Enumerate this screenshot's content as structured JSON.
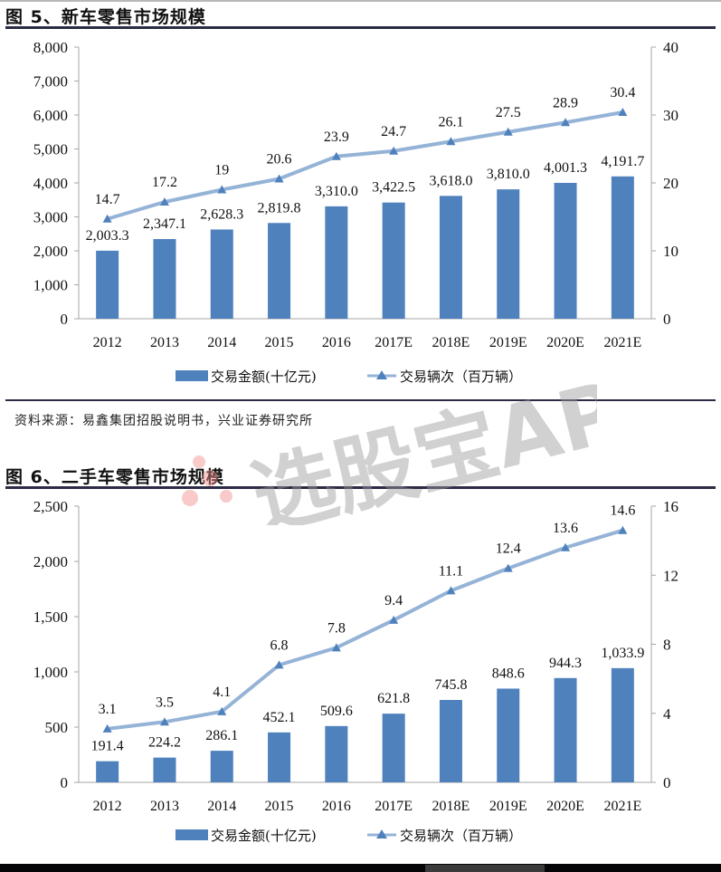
{
  "figures": [
    {
      "title": "图 5、新车零售市场规模",
      "source": "资料来源：易鑫集团招股说明书，兴业证券研究所"
    },
    {
      "title": "图 6、二手车零售市场规模"
    }
  ],
  "watermark": "选股宝APP",
  "colors": {
    "bar": "#4f81bd",
    "line": "#95b3d7",
    "marker": "#4f81bd",
    "rule": "#2b2b45",
    "axis": "#a6a6a6"
  },
  "chart_data": [
    {
      "type": "bar+line",
      "title": "图 5、新车零售市场规模",
      "categories": [
        "2012",
        "2013",
        "2014",
        "2015",
        "2016",
        "2017E",
        "2018E",
        "2019E",
        "2020E",
        "2021E"
      ],
      "series": [
        {
          "name": "交易金额(十亿元)",
          "type": "bar",
          "axis": "left",
          "values": [
            2003.3,
            2347.1,
            2628.3,
            2819.8,
            3310.0,
            3422.5,
            3618.0,
            3810.0,
            4001.3,
            4191.7
          ],
          "labels": [
            "2,003.3",
            "2,347.1",
            "2,628.3",
            "2,819.8",
            "3,310.0",
            "3,422.5",
            "3,618.0",
            "3,810.0",
            "4,001.3",
            "4,191.7"
          ]
        },
        {
          "name": "交易辆次（百万辆）",
          "type": "line",
          "axis": "right",
          "values": [
            14.7,
            17.2,
            19,
            20.6,
            23.9,
            24.7,
            26.1,
            27.5,
            28.9,
            30.4
          ],
          "labels": [
            "14.7",
            "17.2",
            "19",
            "20.6",
            "23.9",
            "24.7",
            "26.1",
            "27.5",
            "28.9",
            "30.4"
          ]
        }
      ],
      "y_left": {
        "ylim": [
          0,
          8000
        ],
        "ticks": [
          0,
          1000,
          2000,
          3000,
          4000,
          5000,
          6000,
          7000,
          8000
        ],
        "tick_labels": [
          "0",
          "1,000",
          "2,000",
          "3,000",
          "4,000",
          "5,000",
          "6,000",
          "7,000",
          "8,000"
        ]
      },
      "y_right": {
        "ylim": [
          0,
          40
        ],
        "ticks": [
          0,
          10,
          20,
          30,
          40
        ],
        "tick_labels": [
          "0",
          "10",
          "20",
          "30",
          "40"
        ]
      },
      "grid": false,
      "legend_position": "bottom"
    },
    {
      "type": "bar+line",
      "title": "图 6、二手车零售市场规模",
      "categories": [
        "2012",
        "2013",
        "2014",
        "2015",
        "2016",
        "2017E",
        "2018E",
        "2019E",
        "2020E",
        "2021E"
      ],
      "series": [
        {
          "name": "交易金额(十亿元)",
          "type": "bar",
          "axis": "left",
          "values": [
            191.4,
            224.2,
            286.1,
            452.1,
            509.6,
            621.8,
            745.8,
            848.6,
            944.3,
            1033.9
          ],
          "labels": [
            "191.4",
            "224.2",
            "286.1",
            "452.1",
            "509.6",
            "621.8",
            "745.8",
            "848.6",
            "944.3",
            "1,033.9"
          ]
        },
        {
          "name": "交易辆次（百万辆）",
          "type": "line",
          "axis": "right",
          "values": [
            3.1,
            3.5,
            4.1,
            6.8,
            7.8,
            9.4,
            11.1,
            12.4,
            13.6,
            14.6
          ],
          "labels": [
            "3.1",
            "3.5",
            "4.1",
            "6.8",
            "7.8",
            "9.4",
            "11.1",
            "12.4",
            "13.6",
            "14.6"
          ]
        }
      ],
      "y_left": {
        "ylim": [
          0,
          2500
        ],
        "ticks": [
          0,
          500,
          1000,
          1500,
          2000,
          2500
        ],
        "tick_labels": [
          "0",
          "500",
          "1,000",
          "1,500",
          "2,000",
          "2,500"
        ]
      },
      "y_right": {
        "ylim": [
          0,
          16
        ],
        "ticks": [
          0,
          4,
          8,
          12,
          16
        ],
        "tick_labels": [
          "0",
          "4",
          "8",
          "12",
          "16"
        ]
      },
      "grid": false,
      "legend_position": "bottom"
    }
  ]
}
